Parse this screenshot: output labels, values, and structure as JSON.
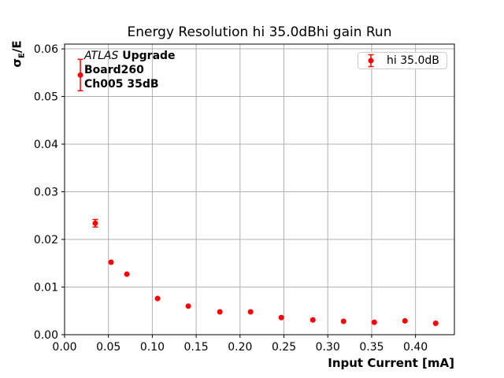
{
  "title": "Energy Resolution hi 35.0dBhi gain Run",
  "annotation": {
    "line1_italic": "ATLAS",
    "line1_bold": " Upgrade",
    "line2": "Board260",
    "line3": "Ch005 35dB"
  },
  "legend": {
    "label": "hi 35.0dB"
  },
  "axes": {
    "xlabel": "Input Current [mA]",
    "ylabel_base": "σ",
    "ylabel_sub": "E",
    "ylabel_rest": "/E"
  },
  "colors": {
    "marker": "#ff0000",
    "grid": "#b0b0b0",
    "frame": "#000000",
    "legend_border": "#cccccc"
  },
  "chart_data": {
    "type": "scatter",
    "title": "Energy Resolution hi 35.0dBhi gain Run",
    "xlabel": "Input Current [mA]",
    "ylabel": "σE/E",
    "grid": true,
    "legend_position": "upper right",
    "xlim": [
      0,
      0.4443
    ],
    "ylim": [
      0,
      0.061
    ],
    "x_ticks": [
      0.0,
      0.05,
      0.1,
      0.15,
      0.2,
      0.25,
      0.3,
      0.35,
      0.4
    ],
    "x_tick_labels": [
      "0.00",
      "0.05",
      "0.10",
      "0.15",
      "0.20",
      "0.25",
      "0.30",
      "0.35",
      "0.40"
    ],
    "y_ticks": [
      0.0,
      0.01,
      0.02,
      0.03,
      0.04,
      0.05,
      0.06
    ],
    "y_tick_labels": [
      "0.00",
      "0.01",
      "0.02",
      "0.03",
      "0.04",
      "0.05",
      "0.06"
    ],
    "series": [
      {
        "name": "hi 35.0dB",
        "x": [
          0.018,
          0.035,
          0.053,
          0.071,
          0.106,
          0.141,
          0.177,
          0.212,
          0.247,
          0.283,
          0.318,
          0.353,
          0.388,
          0.423
        ],
        "y": [
          0.0545,
          0.0234,
          0.0152,
          0.0127,
          0.0076,
          0.006,
          0.0048,
          0.0048,
          0.0036,
          0.0031,
          0.0028,
          0.0026,
          0.0029,
          0.0024
        ],
        "yerr": [
          0.0033,
          0.0008,
          0,
          0,
          0,
          0,
          0,
          0,
          0,
          0,
          0,
          0,
          0,
          0
        ]
      }
    ]
  }
}
